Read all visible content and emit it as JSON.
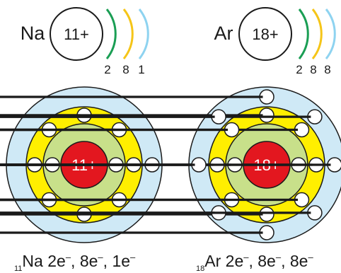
{
  "atoms": [
    {
      "symbol": "Na",
      "nucleus": "11+",
      "shell_counts": [
        "2",
        "8",
        "1"
      ],
      "electrons_per_shell": [
        2,
        8,
        1
      ],
      "formula": {
        "atomic_number": "11",
        "symbol": "Na",
        "shells": [
          {
            "count": "2",
            "unit": "e"
          },
          {
            "count": "8",
            "unit": "e"
          },
          {
            "count": "1",
            "unit": "e"
          }
        ]
      }
    },
    {
      "symbol": "Ar",
      "nucleus": "18+",
      "shell_counts": [
        "2",
        "8",
        "8"
      ],
      "electrons_per_shell": [
        2,
        8,
        8
      ],
      "formula": {
        "atomic_number": "18",
        "symbol": "Ar",
        "shells": [
          {
            "count": "2",
            "unit": "e"
          },
          {
            "count": "8",
            "unit": "e"
          },
          {
            "count": "8",
            "unit": "e"
          }
        ]
      }
    }
  ],
  "colors": {
    "arc_shell_1": "#1a9e54",
    "arc_shell_2": "#f5c518",
    "arc_shell_3": "#8ed3f0",
    "shell_3_fill": "#cfe9f6",
    "shell_2_fill": "#ffef00",
    "shell_1_fill": "#c8e08a",
    "nucleus_fill": "#e3171f",
    "electron_fill": "#ffffff",
    "outline": "#1a1a1a"
  },
  "electron_symbol": "minus"
}
